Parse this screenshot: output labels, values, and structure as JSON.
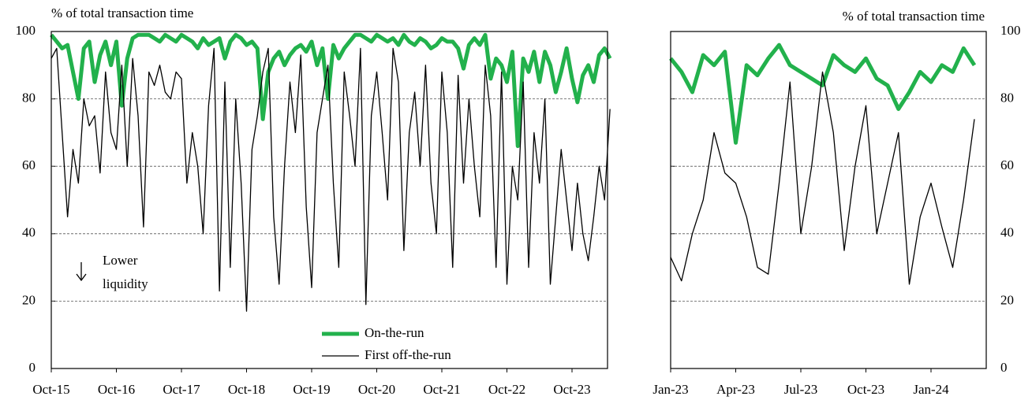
{
  "chart_data": [
    {
      "type": "line",
      "y_label": "% of total transaction time",
      "ylim": [
        0,
        100
      ],
      "yticks": [
        0,
        20,
        40,
        60,
        80,
        100
      ],
      "grid": true,
      "y_axis_side": "left",
      "legend": "lower center",
      "annotation_lines": [
        "Lower",
        "liquidity"
      ],
      "categories": [
        "Oct-15",
        null,
        null,
        null,
        null,
        null,
        null,
        null,
        null,
        null,
        null,
        null,
        "Oct-16",
        null,
        null,
        null,
        null,
        null,
        null,
        null,
        null,
        null,
        null,
        null,
        "Oct-17",
        null,
        null,
        null,
        null,
        null,
        null,
        null,
        null,
        null,
        null,
        null,
        "Oct-18",
        null,
        null,
        null,
        null,
        null,
        null,
        null,
        null,
        null,
        null,
        null,
        "Oct-19",
        null,
        null,
        null,
        null,
        null,
        null,
        null,
        null,
        null,
        null,
        null,
        "Oct-20",
        null,
        null,
        null,
        null,
        null,
        null,
        null,
        null,
        null,
        null,
        null,
        "Oct-21",
        null,
        null,
        null,
        null,
        null,
        null,
        null,
        null,
        null,
        null,
        null,
        "Oct-22",
        null,
        null,
        null,
        null,
        null,
        null,
        null,
        null,
        null,
        null,
        null,
        "Oct-23",
        null,
        null,
        null,
        null,
        null,
        null,
        null
      ],
      "series": [
        {
          "name": "On-the-run",
          "color": "#22b14c",
          "width": 5,
          "values": [
            99,
            97,
            95,
            96,
            88,
            80,
            95,
            97,
            85,
            93,
            97,
            90,
            97,
            78,
            92,
            98,
            99,
            99,
            99,
            98,
            97,
            99,
            98,
            97,
            99,
            98,
            97,
            95,
            98,
            96,
            97,
            98,
            92,
            97,
            99,
            98,
            96,
            97,
            95,
            74,
            88,
            92,
            94,
            90,
            93,
            95,
            96,
            94,
            97,
            90,
            95,
            80,
            96,
            92,
            95,
            97,
            99,
            99,
            98,
            97,
            99,
            98,
            97,
            98,
            96,
            99,
            97,
            96,
            98,
            97,
            95,
            96,
            98,
            97,
            97,
            95,
            89,
            96,
            98,
            96,
            99,
            86,
            92,
            90,
            85,
            94,
            66,
            92,
            88,
            94,
            85,
            94,
            90,
            82,
            88,
            95,
            86,
            79,
            87,
            90,
            85,
            93,
            95,
            92
          ]
        },
        {
          "name": "First off-the-run",
          "color": "#000000",
          "width": 1.3,
          "values": [
            92,
            95,
            70,
            45,
            65,
            55,
            80,
            72,
            75,
            58,
            88,
            70,
            65,
            90,
            60,
            92,
            75,
            42,
            88,
            84,
            90,
            82,
            80,
            88,
            86,
            55,
            70,
            60,
            40,
            78,
            95,
            23,
            85,
            30,
            80,
            55,
            17,
            65,
            75,
            88,
            95,
            45,
            25,
            60,
            85,
            70,
            93,
            48,
            24,
            70,
            80,
            90,
            55,
            30,
            88,
            75,
            60,
            95,
            19,
            75,
            88,
            70,
            50,
            95,
            85,
            35,
            70,
            82,
            60,
            90,
            55,
            40,
            88,
            70,
            30,
            87,
            55,
            80,
            60,
            45,
            90,
            75,
            30,
            88,
            25,
            60,
            50,
            85,
            30,
            70,
            55,
            80,
            25,
            45,
            65,
            50,
            35,
            55,
            40,
            32,
            45,
            60,
            50,
            77
          ]
        }
      ]
    },
    {
      "type": "line",
      "y_label": "% of total transaction time",
      "ylim": [
        0,
        100
      ],
      "yticks": [
        0,
        20,
        40,
        60,
        80,
        100
      ],
      "grid": true,
      "y_axis_side": "right",
      "categories": [
        "Jan-23",
        null,
        null,
        null,
        null,
        null,
        "Apr-23",
        null,
        null,
        null,
        null,
        null,
        "Jul-23",
        null,
        null,
        null,
        null,
        null,
        "Oct-23",
        null,
        null,
        null,
        null,
        null,
        "Jan-24",
        null,
        null,
        null,
        null
      ],
      "series": [
        {
          "name": "On-the-run",
          "color": "#22b14c",
          "width": 5,
          "values": [
            92,
            88,
            82,
            93,
            90,
            94,
            67,
            90,
            87,
            92,
            96,
            90,
            88,
            86,
            84,
            93,
            90,
            88,
            92,
            86,
            84,
            77,
            82,
            88,
            85,
            90,
            88,
            95,
            90
          ]
        },
        {
          "name": "First off-the-run",
          "color": "#000000",
          "width": 1.3,
          "values": [
            33,
            26,
            40,
            50,
            70,
            58,
            55,
            45,
            30,
            28,
            55,
            85,
            40,
            60,
            88,
            70,
            35,
            60,
            78,
            40,
            55,
            70,
            25,
            45,
            55,
            42,
            30,
            50,
            74
          ]
        }
      ]
    }
  ]
}
